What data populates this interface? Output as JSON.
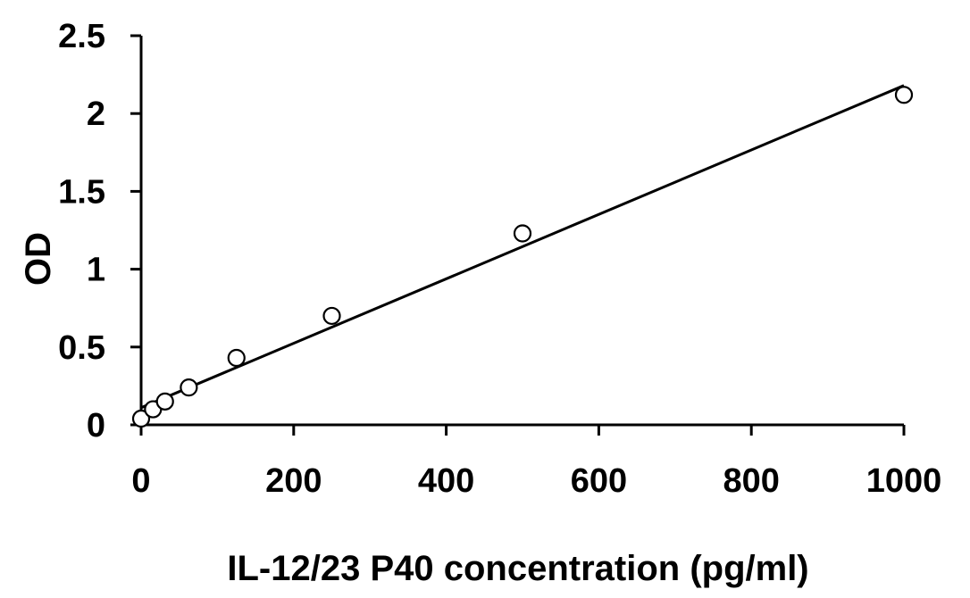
{
  "chart_data": {
    "type": "scatter",
    "title": "",
    "xlabel": "IL-12/23 P40 concentration (pg/ml)",
    "ylabel": "OD",
    "xlim": [
      0,
      1000
    ],
    "ylim": [
      0,
      2.5
    ],
    "x_ticks": [
      0,
      200,
      400,
      600,
      800,
      1000
    ],
    "y_ticks": [
      0,
      0.5,
      1,
      1.5,
      2,
      2.5
    ],
    "x_tick_labels": [
      "0",
      "200",
      "400",
      "600",
      "800",
      "1000"
    ],
    "y_tick_labels": [
      "0",
      "0.5",
      "1",
      "1.5",
      "2",
      "2.5"
    ],
    "grid": false,
    "legend": "none",
    "series": [
      {
        "marker": "open-circle",
        "color": "#000000",
        "x": [
          0,
          15.6,
          31.3,
          62.5,
          125,
          250,
          500,
          1000
        ],
        "y": [
          0.04,
          0.1,
          0.15,
          0.24,
          0.43,
          0.7,
          1.23,
          2.12
        ]
      }
    ],
    "trendline": {
      "type": "linear",
      "color": "#000000",
      "x": [
        0,
        1000
      ],
      "y": [
        0.11,
        2.18
      ]
    }
  }
}
